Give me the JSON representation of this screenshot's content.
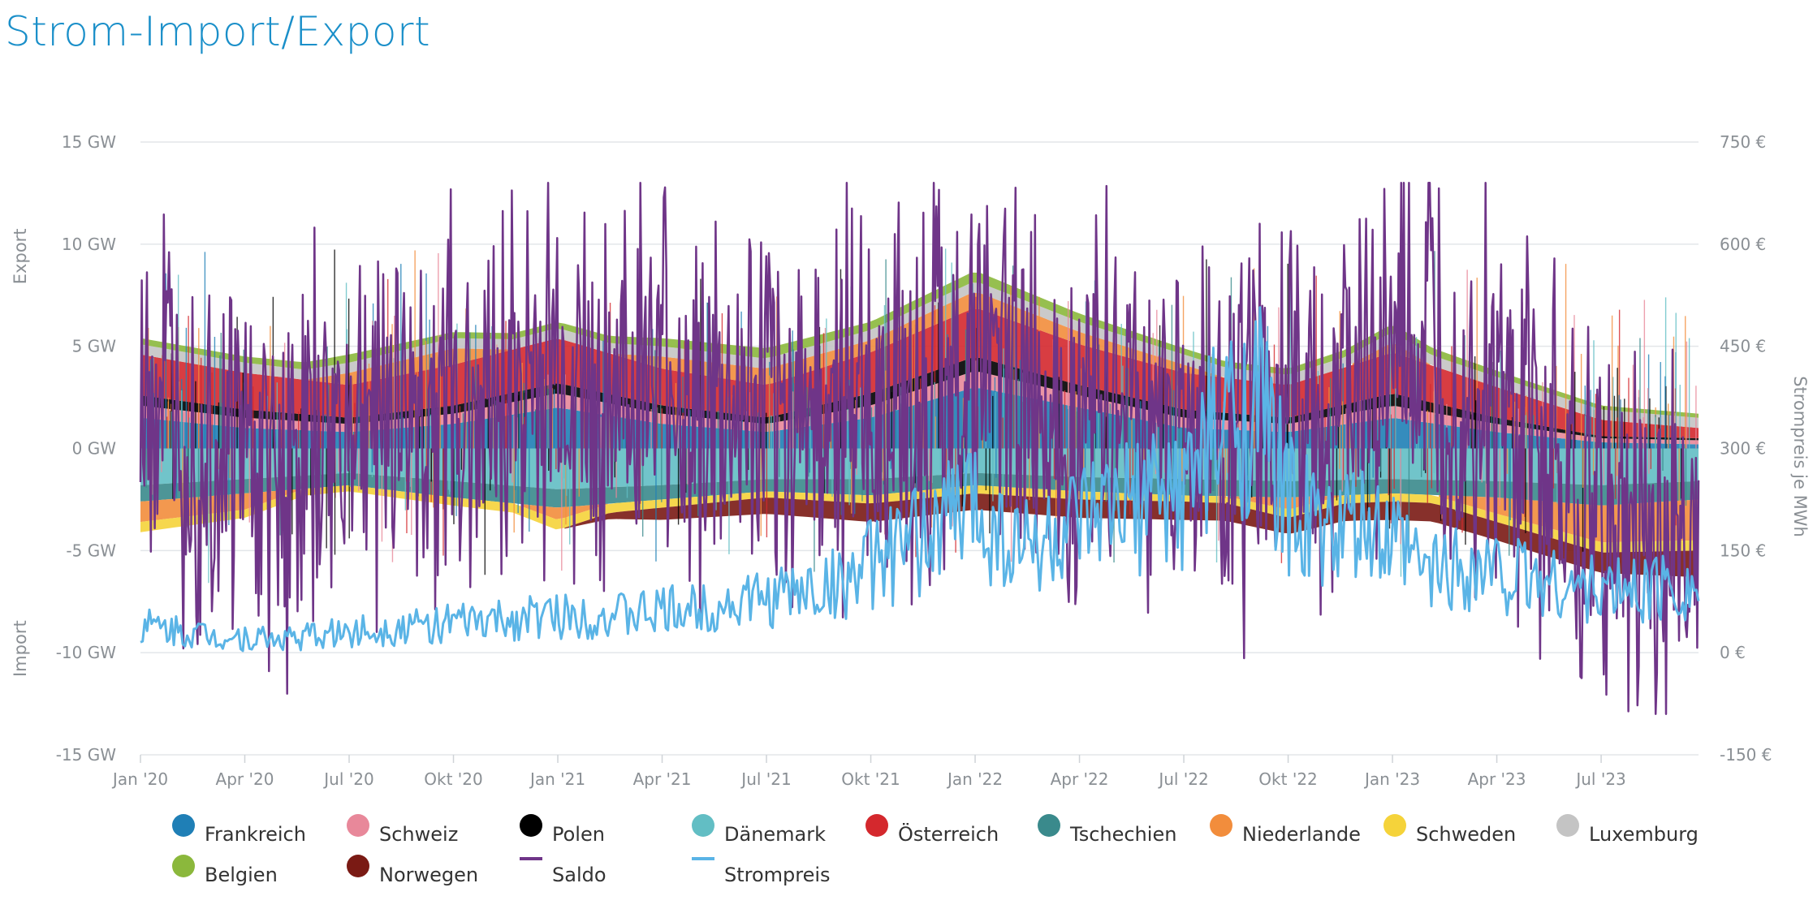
{
  "header": {
    "title": "Strom-Import/Export"
  },
  "chart_data": {
    "type": "area",
    "left_axis": {
      "ticks": [
        "15 GW",
        "10 GW",
        "5 GW",
        "0 GW",
        "-5 GW",
        "-10 GW",
        "-15 GW"
      ],
      "tick_values": [
        15,
        10,
        5,
        0,
        -5,
        -10,
        -15
      ],
      "range": [
        -15,
        15
      ],
      "label_upper": "Export",
      "label_lower": "Import"
    },
    "right_axis": {
      "ticks": [
        "750 €",
        "600 €",
        "450 €",
        "300 €",
        "150 €",
        "0 €",
        "-150 €"
      ],
      "tick_values": [
        750,
        600,
        450,
        300,
        150,
        0,
        -150
      ],
      "range": [
        -150,
        750
      ],
      "label": "Strompreis je MWh"
    },
    "x_axis": {
      "ticks": [
        "Jan '20",
        "Apr '20",
        "Jul '20",
        "Okt '20",
        "Jan '21",
        "Apr '21",
        "Jul '21",
        "Okt '21",
        "Jan '22",
        "Apr '22",
        "Jul '22",
        "Okt '22",
        "Jan '23",
        "Apr '23",
        "Jul '23"
      ],
      "tick_months": [
        0,
        3,
        6,
        9,
        12,
        15,
        18,
        21,
        24,
        27,
        30,
        33,
        36,
        39,
        42
      ],
      "range_months": [
        0,
        44.8
      ]
    },
    "grid": true,
    "legend_position": "bottom",
    "series": [
      {
        "name": "Frankreich",
        "color": "#1f7fb6",
        "kind": "stack",
        "x_months": [
          0,
          3,
          6,
          9,
          12,
          15,
          18,
          21,
          24,
          27,
          30,
          33,
          36,
          39,
          42,
          44.8
        ],
        "values": [
          1.5,
          1.0,
          0.8,
          1.2,
          2.0,
          1.2,
          0.8,
          1.5,
          3.0,
          2.0,
          1.0,
          0.8,
          1.5,
          0.8,
          0.3,
          0.2
        ]
      },
      {
        "name": "Schweiz",
        "color": "#e8889a",
        "kind": "stack",
        "x_months": [
          0,
          3,
          6,
          9,
          12,
          15,
          18,
          21,
          24,
          27,
          30,
          33,
          36,
          39,
          42,
          44.8
        ],
        "values": [
          0.6,
          0.5,
          0.4,
          0.5,
          0.7,
          0.5,
          0.4,
          0.6,
          0.8,
          0.6,
          0.5,
          0.4,
          0.6,
          0.4,
          0.2,
          0.2
        ]
      },
      {
        "name": "Polen",
        "color": "#000000",
        "kind": "stack",
        "x_months": [
          0,
          3,
          6,
          9,
          12,
          15,
          18,
          21,
          24,
          27,
          30,
          33,
          36,
          39,
          42,
          44.8
        ],
        "values": [
          0.5,
          0.4,
          0.3,
          0.4,
          0.5,
          0.4,
          0.3,
          0.6,
          0.7,
          0.5,
          0.4,
          0.3,
          0.6,
          0.3,
          0.1,
          0.1
        ]
      },
      {
        "name": "Dänemark",
        "color": "#62bec4",
        "kind": "stack",
        "x_months": [
          0,
          3,
          6,
          9,
          12,
          15,
          18,
          21,
          24,
          27,
          30,
          33,
          36,
          39,
          42,
          44.8
        ],
        "values": [
          -1.8,
          -1.5,
          -1.2,
          -1.6,
          -2.0,
          -1.8,
          -1.5,
          -1.5,
          -1.2,
          -1.4,
          -1.5,
          -1.6,
          -1.5,
          -1.6,
          -1.8,
          -1.6
        ]
      },
      {
        "name": "Österreich",
        "color": "#d4282d",
        "kind": "stack",
        "x_months": [
          0,
          3,
          6,
          9,
          12,
          15,
          18,
          21,
          24,
          27,
          30,
          33,
          36,
          39,
          42,
          44.8
        ],
        "values": [
          2.0,
          1.8,
          1.6,
          2.0,
          2.2,
          1.8,
          1.6,
          2.0,
          2.4,
          2.0,
          1.8,
          1.6,
          2.0,
          1.5,
          0.8,
          0.5
        ]
      },
      {
        "name": "Tschechien",
        "color": "#3a8a8c",
        "kind": "stack",
        "x_months": [
          0,
          3,
          6,
          9,
          12,
          15,
          18,
          21,
          24,
          27,
          30,
          33,
          36,
          39,
          42,
          44.8
        ],
        "values": [
          -0.8,
          -0.7,
          -0.6,
          -0.8,
          -0.9,
          -0.7,
          -0.6,
          -0.8,
          -0.6,
          -0.7,
          -0.8,
          -0.8,
          -0.7,
          -0.8,
          -1.0,
          -0.9
        ]
      },
      {
        "name": "Niederlande",
        "color": "#f28d3c",
        "kind": "stack",
        "x_months": [
          0,
          3,
          6,
          9,
          12,
          15,
          18,
          21,
          24,
          27,
          30,
          33,
          36,
          39,
          42,
          44.8
        ],
        "values": [
          -1.0,
          -0.8,
          0.6,
          0.8,
          -0.6,
          0.6,
          0.8,
          0.6,
          0.8,
          0.6,
          0.4,
          -0.6,
          0.5,
          -0.8,
          -1.8,
          -2.0
        ]
      },
      {
        "name": "Schweden",
        "color": "#f5d33a",
        "kind": "stack",
        "x_months": [
          0,
          3,
          6,
          9,
          12,
          15,
          18,
          21,
          24,
          27,
          30,
          33,
          36,
          39,
          42,
          44.8
        ],
        "values": [
          -0.5,
          -0.4,
          -0.3,
          -0.4,
          -0.5,
          -0.4,
          -0.3,
          -0.4,
          -0.4,
          -0.4,
          -0.3,
          -0.4,
          -0.4,
          -0.4,
          -0.5,
          -0.5
        ]
      },
      {
        "name": "Luxemburg",
        "color": "#c4c4c4",
        "kind": "stack",
        "x_months": [
          0,
          3,
          6,
          9,
          12,
          15,
          18,
          21,
          24,
          27,
          30,
          33,
          36,
          39,
          42,
          44.8
        ],
        "values": [
          0.5,
          0.5,
          0.5,
          0.5,
          0.5,
          0.5,
          0.5,
          0.5,
          0.5,
          0.5,
          0.5,
          0.5,
          0.5,
          0.5,
          0.5,
          0.5
        ]
      },
      {
        "name": "Belgien",
        "color": "#8bb83c",
        "kind": "stack",
        "x_months": [
          0,
          3,
          6,
          9,
          12,
          15,
          18,
          21,
          24,
          27,
          30,
          33,
          36,
          39,
          42,
          44.8
        ],
        "values": [
          0.3,
          0.3,
          0.4,
          0.3,
          0.3,
          0.4,
          0.5,
          0.4,
          0.5,
          0.4,
          0.3,
          0.3,
          0.4,
          0.3,
          0.2,
          0.2
        ]
      },
      {
        "name": "Norwegen",
        "color": "#7a1a14",
        "kind": "stack",
        "x_months": [
          0,
          3,
          6,
          9,
          12,
          15,
          18,
          21,
          24,
          27,
          30,
          33,
          36,
          39,
          42,
          44.8
        ],
        "values": [
          0.0,
          0.0,
          0.0,
          0.0,
          0.0,
          -0.6,
          -0.8,
          -0.9,
          -0.8,
          -0.9,
          -0.9,
          -0.8,
          -0.9,
          -0.9,
          -1.0,
          -1.3
        ]
      },
      {
        "name": "Saldo",
        "color": "#6f3588",
        "kind": "line",
        "x_months": [
          0,
          1,
          2,
          3,
          4,
          5,
          6,
          7,
          8,
          9,
          10,
          11,
          12,
          13,
          14,
          15,
          16,
          17,
          18,
          19,
          20,
          21,
          22,
          23,
          24,
          25,
          26,
          27,
          28,
          29,
          30,
          31,
          32,
          33,
          34,
          35,
          36,
          37,
          38,
          39,
          40,
          41,
          42,
          43,
          44,
          44.8
        ],
        "values": [
          4,
          2,
          1,
          0,
          -1,
          0,
          1,
          2,
          2,
          2,
          3,
          3,
          4,
          3,
          3,
          3,
          2,
          1,
          1,
          2,
          2,
          2,
          3,
          4,
          4,
          4,
          3,
          2,
          2,
          2,
          1,
          1,
          1,
          2,
          2,
          3,
          4,
          4,
          3,
          2,
          0,
          -2,
          -4,
          -4,
          -5,
          -4
        ]
      },
      {
        "name": "Strompreis",
        "color": "#5ab4e6",
        "kind": "price",
        "x_months": [
          0,
          2,
          4,
          6,
          8,
          10,
          12,
          14,
          16,
          18,
          20,
          21,
          22,
          23,
          24,
          25,
          26,
          27,
          28,
          29,
          30,
          31,
          32,
          33,
          34,
          35,
          36,
          37,
          38,
          40,
          42,
          44,
          44.8
        ],
        "values": [
          40,
          25,
          20,
          30,
          40,
          45,
          55,
          55,
          65,
          80,
          100,
          130,
          150,
          190,
          220,
          160,
          160,
          180,
          200,
          220,
          240,
          320,
          380,
          220,
          170,
          180,
          160,
          120,
          130,
          110,
          90,
          100,
          100
        ]
      }
    ]
  }
}
